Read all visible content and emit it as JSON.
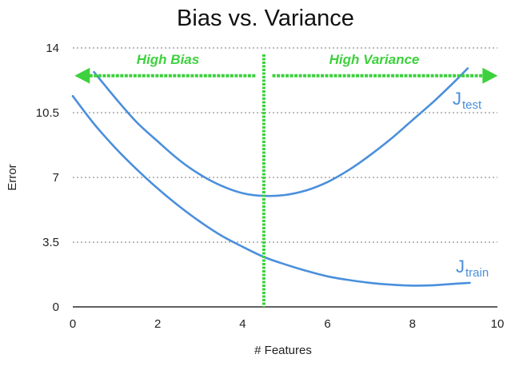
{
  "chart_data": {
    "type": "line",
    "title": "Bias vs. Variance",
    "xlabel": "# Features",
    "ylabel": "Error",
    "xlim": [
      0,
      10
    ],
    "ylim": [
      0,
      14
    ],
    "xticks": [
      "0",
      "2",
      "4",
      "6",
      "8",
      "10"
    ],
    "yticks": [
      "0",
      "3.5",
      "7",
      "10.5",
      "14"
    ],
    "grid": "horizontal dotted",
    "series": [
      {
        "name": "Jtest",
        "name_main": "J",
        "name_sub": "test",
        "color": "#4a8fdc",
        "x": [
          0.5,
          1.0,
          1.5,
          2.0,
          2.5,
          3.0,
          3.5,
          4.0,
          4.5,
          5.0,
          5.5,
          6.0,
          6.5,
          7.0,
          7.5,
          8.0,
          8.5,
          9.0,
          9.3
        ],
        "y": [
          12.7,
          11.3,
          10.0,
          8.95,
          7.95,
          7.15,
          6.55,
          6.15,
          6.0,
          6.05,
          6.3,
          6.75,
          7.4,
          8.2,
          9.1,
          10.1,
          11.1,
          12.2,
          12.9
        ]
      },
      {
        "name": "Jtrain",
        "name_main": "J",
        "name_sub": "train",
        "color": "#4a8fdc",
        "x": [
          0.0,
          0.5,
          1.0,
          1.5,
          2.0,
          2.5,
          3.0,
          3.5,
          4.0,
          4.5,
          5.0,
          5.5,
          6.0,
          6.5,
          7.0,
          7.5,
          8.0,
          8.5,
          9.0,
          9.35
        ],
        "y": [
          11.4,
          9.9,
          8.6,
          7.45,
          6.4,
          5.45,
          4.6,
          3.85,
          3.25,
          2.7,
          2.3,
          1.95,
          1.65,
          1.45,
          1.3,
          1.2,
          1.15,
          1.17,
          1.25,
          1.3
        ]
      }
    ],
    "annotations": {
      "color": "#3dd13d",
      "divider_x": 4.5,
      "arrow_y": 12.5,
      "left_label": "High Bias",
      "right_label": "High Variance",
      "left_arrow_x": [
        4.3,
        0.1
      ],
      "right_arrow_x": [
        4.7,
        9.95
      ]
    }
  }
}
